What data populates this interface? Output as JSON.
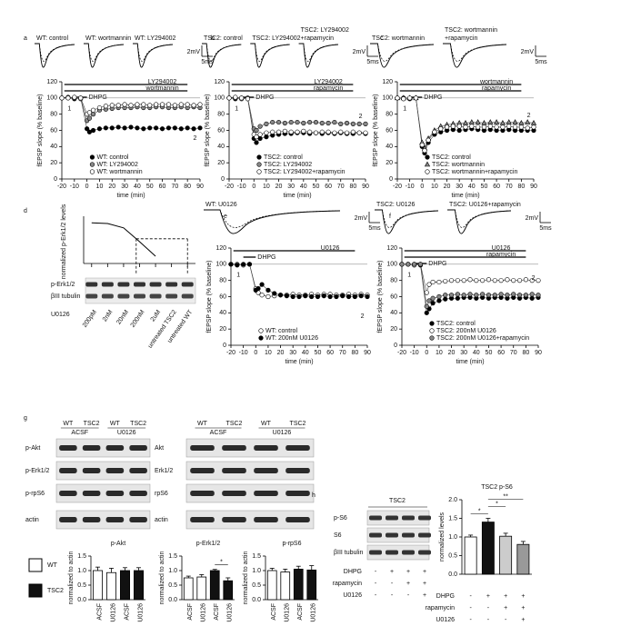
{
  "chart_data": [
    {
      "panel": "a",
      "type": "line",
      "traces": [
        [
          "WT: control"
        ],
        [
          "WT: wortmannin"
        ],
        [
          "WT: LY294002"
        ]
      ],
      "scale": [
        "2mV",
        "5ms"
      ],
      "protocol": [
        "LY294002",
        "wortmannin",
        "DHPG"
      ],
      "annotations": [
        "1",
        "2"
      ],
      "ylabel": "fEPSP slope (% baseline)",
      "xlabel": "time (min)",
      "x": [
        -20,
        -15,
        -10,
        -5,
        0,
        2,
        5,
        10,
        15,
        20,
        25,
        30,
        35,
        40,
        45,
        50,
        55,
        60,
        65,
        70,
        75,
        80,
        85,
        90
      ],
      "xlim": [
        -20,
        90
      ],
      "xticks": [
        -20,
        -10,
        0,
        10,
        20,
        30,
        40,
        50,
        60,
        70,
        80,
        90
      ],
      "ylim": [
        0,
        120
      ],
      "yticks": [
        0,
        20,
        40,
        60,
        80,
        100,
        120
      ],
      "baseline": 100,
      "legend": "lower right",
      "series": [
        {
          "name": "WT: control",
          "color": "#000000",
          "marker": "circle",
          "values": [
            100,
            100,
            99,
            100,
            62,
            58,
            60,
            62,
            63,
            63,
            64,
            63,
            64,
            63,
            62,
            63,
            63,
            62,
            63,
            63,
            62,
            63,
            62,
            63
          ]
        },
        {
          "name": "WT: LY294002",
          "color": "#888888",
          "marker": "circle",
          "values": [
            100,
            101,
            100,
            99,
            72,
            75,
            80,
            85,
            86,
            87,
            88,
            88,
            88,
            89,
            88,
            88,
            89,
            89,
            88,
            88,
            89,
            88,
            89,
            88
          ]
        },
        {
          "name": "WT: wortmannin",
          "color": "#ffffff",
          "marker": "circle",
          "values": [
            100,
            100,
            101,
            100,
            80,
            82,
            85,
            88,
            90,
            91,
            91,
            92,
            91,
            92,
            92,
            91,
            92,
            92,
            92,
            91,
            92,
            92,
            91,
            92
          ]
        }
      ]
    },
    {
      "panel": "b",
      "type": "line",
      "traces": [
        [
          "TSC2: control"
        ],
        [
          "TSC2: LY294002"
        ],
        [
          "TSC2: LY294002",
          "+rapamycin"
        ]
      ],
      "scale": [
        "2mV",
        "5ms"
      ],
      "protocol": [
        "LY294002",
        "rapamycin",
        "DHPG"
      ],
      "annotations": [
        "1",
        "2"
      ],
      "ylabel": "fEPSP slope (% baseline)",
      "xlabel": "time (min)",
      "x": [
        -20,
        -15,
        -10,
        -5,
        0,
        2,
        5,
        10,
        15,
        20,
        25,
        30,
        35,
        40,
        45,
        50,
        55,
        60,
        65,
        70,
        75,
        80,
        85,
        90
      ],
      "xlim": [
        -20,
        90
      ],
      "xticks": [
        -20,
        -10,
        0,
        10,
        20,
        30,
        40,
        50,
        60,
        70,
        80,
        90
      ],
      "ylim": [
        0,
        120
      ],
      "yticks": [
        0,
        20,
        40,
        60,
        80,
        100,
        120
      ],
      "baseline": 100,
      "legend": "lower right",
      "series": [
        {
          "name": "TSC2: control",
          "color": "#000000",
          "marker": "circle",
          "values": [
            100,
            99,
            100,
            100,
            50,
            45,
            50,
            52,
            54,
            55,
            56,
            56,
            57,
            57,
            56,
            57,
            56,
            57,
            56,
            57,
            56,
            56,
            57,
            56
          ]
        },
        {
          "name": "TSC2: LY294002",
          "color": "#888888",
          "marker": "circle",
          "values": [
            100,
            100,
            99,
            100,
            62,
            60,
            65,
            68,
            70,
            70,
            69,
            70,
            70,
            69,
            70,
            70,
            69,
            69,
            70,
            68,
            69,
            68,
            68,
            68
          ]
        },
        {
          "name": "TSC2: LY294002+rapamycin",
          "color": "#ffffff",
          "marker": "circle",
          "values": [
            100,
            101,
            100,
            99,
            55,
            52,
            55,
            57,
            58,
            58,
            59,
            58,
            58,
            59,
            58,
            57,
            58,
            58,
            57,
            58,
            57,
            58,
            57,
            57
          ]
        }
      ]
    },
    {
      "panel": "c",
      "type": "line",
      "traces": [
        [
          "TSC2: wortmannin"
        ],
        [
          "TSC2: wortmannin",
          "+rapamycin"
        ]
      ],
      "scale": [
        "2mV",
        "5ms"
      ],
      "protocol": [
        "wortmannin",
        "rapamycin",
        "DHPG"
      ],
      "annotations": [
        "1",
        "2"
      ],
      "ylabel": "fEPSP slope (% baseline)",
      "xlabel": "time (min)",
      "x": [
        -20,
        -15,
        -10,
        -5,
        0,
        2,
        5,
        10,
        15,
        20,
        25,
        30,
        35,
        40,
        45,
        50,
        55,
        60,
        65,
        70,
        75,
        80,
        85,
        90
      ],
      "xlim": [
        -20,
        90
      ],
      "xticks": [
        -20,
        -10,
        0,
        10,
        20,
        30,
        40,
        50,
        60,
        70,
        80,
        90
      ],
      "ylim": [
        0,
        120
      ],
      "yticks": [
        0,
        20,
        40,
        60,
        80,
        100,
        120
      ],
      "baseline": 100,
      "legend": "lower right",
      "series": [
        {
          "name": "TSC2: control",
          "color": "#000000",
          "marker": "circle",
          "values": [
            100,
            100,
            99,
            100,
            40,
            32,
            45,
            55,
            58,
            60,
            61,
            60,
            61,
            62,
            61,
            60,
            61,
            60,
            60,
            61,
            60,
            60,
            60,
            60
          ]
        },
        {
          "name": "TSC2: wortmannin",
          "color": "#888888",
          "marker": "triangle",
          "values": [
            100,
            100,
            100,
            100,
            45,
            38,
            50,
            60,
            65,
            67,
            68,
            69,
            69,
            70,
            70,
            69,
            70,
            70,
            69,
            70,
            70,
            69,
            70,
            69
          ]
        },
        {
          "name": "TSC2: wortmannin+rapamycin",
          "color": "#ffffff",
          "marker": "circle",
          "values": [
            100,
            99,
            100,
            100,
            42,
            35,
            48,
            58,
            62,
            64,
            65,
            65,
            64,
            65,
            64,
            64,
            65,
            64,
            64,
            65,
            64,
            64,
            63,
            64
          ]
        }
      ]
    },
    {
      "panel": "d",
      "type": "line",
      "ylabel": "normalized p-Erk1/2 levels",
      "categories": [
        "200pM",
        "2nM",
        "20nM",
        "200nM",
        "2uM",
        "untreated TSC2",
        "untreated WT"
      ],
      "ylim": [
        0,
        1.2
      ],
      "reference": 0.68,
      "blot_rows": [
        "p-Erk1/2",
        "βIII tubulin"
      ],
      "treatment": "U0126",
      "series": [
        {
          "color": "#000000",
          "values": [
            1.12,
            1.1,
            0.98,
            0.6,
            0.2,
            null,
            null
          ]
        }
      ]
    },
    {
      "panel": "e",
      "type": "line",
      "traces": [
        [
          "WT: U0126"
        ]
      ],
      "scale": [
        "2mV",
        "5ms"
      ],
      "protocol": [
        "U0126",
        "DHPG"
      ],
      "annotations": [
        "1",
        "2"
      ],
      "ylabel": "fEPSP slope (% baseline)",
      "xlabel": "time (min)",
      "x": [
        -20,
        -15,
        -10,
        -5,
        0,
        2,
        5,
        10,
        15,
        20,
        25,
        30,
        35,
        40,
        45,
        50,
        55,
        60,
        65,
        70,
        75,
        80,
        85,
        90
      ],
      "xlim": [
        -20,
        90
      ],
      "xticks": [
        -20,
        -10,
        0,
        10,
        20,
        30,
        40,
        50,
        60,
        70,
        80,
        90
      ],
      "ylim": [
        0,
        120
      ],
      "yticks": [
        0,
        20,
        40,
        60,
        80,
        100,
        120
      ],
      "baseline": 100,
      "legend": "lower right",
      "series": [
        {
          "name": "WT: control",
          "color": "#ffffff",
          "marker": "circle",
          "values": [
            100,
            100,
            99,
            100,
            70,
            65,
            62,
            60,
            61,
            62,
            62,
            63,
            62,
            62,
            63,
            62,
            63,
            63,
            62,
            62,
            63,
            62,
            63,
            62
          ]
        },
        {
          "name": "WT: 200nM U0126",
          "color": "#000000",
          "marker": "circle",
          "values": [
            100,
            99,
            100,
            100,
            68,
            70,
            75,
            68,
            64,
            62,
            61,
            60,
            60,
            61,
            60,
            60,
            61,
            60,
            60,
            61,
            60,
            60,
            61,
            60
          ]
        }
      ]
    },
    {
      "panel": "f",
      "type": "line",
      "traces": [
        [
          "TSC2: U0126"
        ],
        [
          "TSC2: U0126+rapamycin"
        ]
      ],
      "scale": [
        "2mV",
        "5ms"
      ],
      "protocol": [
        "U0126",
        "rapamycin",
        "DHPG"
      ],
      "annotations": [
        "1",
        "2"
      ],
      "ylabel": "fEPSP slope (% baseline)",
      "xlabel": "time (min)",
      "x": [
        -20,
        -15,
        -10,
        -5,
        0,
        2,
        5,
        10,
        15,
        20,
        25,
        30,
        35,
        40,
        45,
        50,
        55,
        60,
        65,
        70,
        75,
        80,
        85,
        90
      ],
      "xlim": [
        -20,
        90
      ],
      "xticks": [
        -20,
        -10,
        0,
        10,
        20,
        30,
        40,
        50,
        60,
        70,
        80,
        90
      ],
      "ylim": [
        0,
        120
      ],
      "yticks": [
        0,
        20,
        40,
        60,
        80,
        100,
        120
      ],
      "baseline": 100,
      "legend": "lower right",
      "series": [
        {
          "name": "TSC2: control",
          "color": "#000000",
          "marker": "circle",
          "values": [
            100,
            100,
            100,
            99,
            40,
            45,
            52,
            55,
            57,
            58,
            58,
            59,
            59,
            58,
            59,
            58,
            59,
            59,
            58,
            59,
            58,
            59,
            58,
            59
          ]
        },
        {
          "name": "TSC2: 200nM U0126",
          "color": "#ffffff",
          "marker": "circle",
          "values": [
            100,
            100,
            99,
            100,
            65,
            75,
            78,
            78,
            79,
            80,
            80,
            80,
            81,
            80,
            80,
            81,
            80,
            80,
            81,
            80,
            80,
            81,
            80,
            80
          ]
        },
        {
          "name": "TSC2: 200nM U0126+rapamycin",
          "color": "#888888",
          "marker": "circle",
          "values": [
            100,
            100,
            100,
            100,
            48,
            55,
            58,
            60,
            62,
            62,
            63,
            62,
            63,
            62,
            63,
            62,
            62,
            63,
            62,
            63,
            62,
            62,
            63,
            62
          ]
        }
      ]
    },
    {
      "type": "bar",
      "title": "p-Akt",
      "ylabel": "normalized to actin",
      "categories": [
        "ACSF",
        "U0126",
        "ACSF",
        "U0126"
      ],
      "values": [
        1.0,
        0.93,
        1.0,
        1.0
      ],
      "errors": [
        0.12,
        0.15,
        0.1,
        0.1
      ],
      "colors": [
        "#ffffff",
        "#ffffff",
        "#111111",
        "#111111"
      ],
      "ylim": [
        0,
        1.5
      ],
      "yticks": [
        {
          "value": 0,
          "label": "0.0"
        },
        {
          "value": 0.5,
          "label": "0.5"
        },
        {
          "value": 1,
          "label": "1.0"
        },
        {
          "value": 1.5,
          "label": "1.5"
        }
      ]
    },
    {
      "type": "bar",
      "title": "p-Erk1/2",
      "ylabel": "normalized to actin",
      "categories": [
        "ACSF",
        "U0126",
        "ACSF",
        "U0126"
      ],
      "values": [
        0.75,
        0.78,
        1.0,
        0.65
      ],
      "errors": [
        0.06,
        0.08,
        0.04,
        0.1
      ],
      "colors": [
        "#ffffff",
        "#ffffff",
        "#111111",
        "#111111"
      ],
      "annotations": [
        "*"
      ],
      "ylim": [
        0,
        1.5
      ],
      "yticks": [
        {
          "value": 0,
          "label": "0.0"
        },
        {
          "value": 0.5,
          "label": "0.5"
        },
        {
          "value": 1,
          "label": "1.0"
        },
        {
          "value": 1.5,
          "label": "1.5"
        }
      ]
    },
    {
      "type": "bar",
      "title": "p-rpS6",
      "ylabel": "normalized to actin",
      "categories": [
        "ACSF",
        "U0126",
        "ACSF",
        "U0126"
      ],
      "values": [
        1.0,
        0.95,
        1.05,
        1.02
      ],
      "errors": [
        0.08,
        0.1,
        0.1,
        0.15
      ],
      "colors": [
        "#ffffff",
        "#ffffff",
        "#111111",
        "#111111"
      ],
      "ylim": [
        0,
        1.5
      ],
      "yticks": [
        {
          "value": 0,
          "label": "0.0"
        },
        {
          "value": 0.5,
          "label": "0.5"
        },
        {
          "value": 1,
          "label": "1.0"
        },
        {
          "value": 1.5,
          "label": "1.5"
        }
      ]
    },
    {
      "type": "bar",
      "title": "TSC2 p-S6",
      "ylabel": "normalized levels",
      "values": [
        1.0,
        1.4,
        1.02,
        0.8
      ],
      "errors": [
        0.05,
        0.1,
        0.08,
        0.08
      ],
      "colors": [
        "#ffffff",
        "#111111",
        "#cccccc",
        "#999999"
      ],
      "annotations": [
        "*",
        "*",
        "**"
      ],
      "ylim": [
        0,
        2
      ],
      "yticks": [
        {
          "value": 0,
          "label": "0.0"
        },
        {
          "value": 0.5,
          "label": "0.5"
        },
        {
          "value": 1,
          "label": "1.0"
        },
        {
          "value": 1.5,
          "label": "1.5"
        },
        {
          "value": 2,
          "label": "2.0"
        }
      ],
      "conditions": [
        {
          "label": "DHPG",
          "signs": [
            "-",
            "+",
            "+",
            "+"
          ]
        },
        {
          "label": "rapamycin",
          "signs": [
            "-",
            "-",
            "+",
            "+"
          ]
        },
        {
          "label": "U0126",
          "signs": [
            "-",
            "-",
            "-",
            "+"
          ]
        }
      ]
    }
  ],
  "blots": {
    "g": {
      "panel": "g",
      "groups": [
        {
          "lanes": [
            "WT",
            "TSC2"
          ],
          "treatment": "ACSF"
        },
        {
          "lanes": [
            "WT",
            "TSC2"
          ],
          "treatment": "U0126"
        }
      ],
      "left_rows": [
        "p-Akt",
        "p-Erk1/2",
        "p-rpS6",
        "actin"
      ],
      "right_rows": [
        "Akt",
        "Erk1/2",
        "rpS6",
        "actin"
      ],
      "legend": [
        {
          "name": "WT",
          "color": "#ffffff"
        },
        {
          "name": "TSC2",
          "color": "#111111"
        }
      ]
    },
    "h": {
      "panel": "h",
      "title": "TSC2",
      "rows": [
        "p-S6",
        "S6",
        "βIII tubulin"
      ],
      "conditions": [
        {
          "label": "DHPG",
          "signs": [
            "-",
            "+",
            "+",
            "+"
          ]
        },
        {
          "label": "rapamycin",
          "signs": [
            "-",
            "-",
            "+",
            "+"
          ]
        },
        {
          "label": "U0126",
          "signs": [
            "-",
            "-",
            "-",
            "+"
          ]
        }
      ]
    }
  }
}
